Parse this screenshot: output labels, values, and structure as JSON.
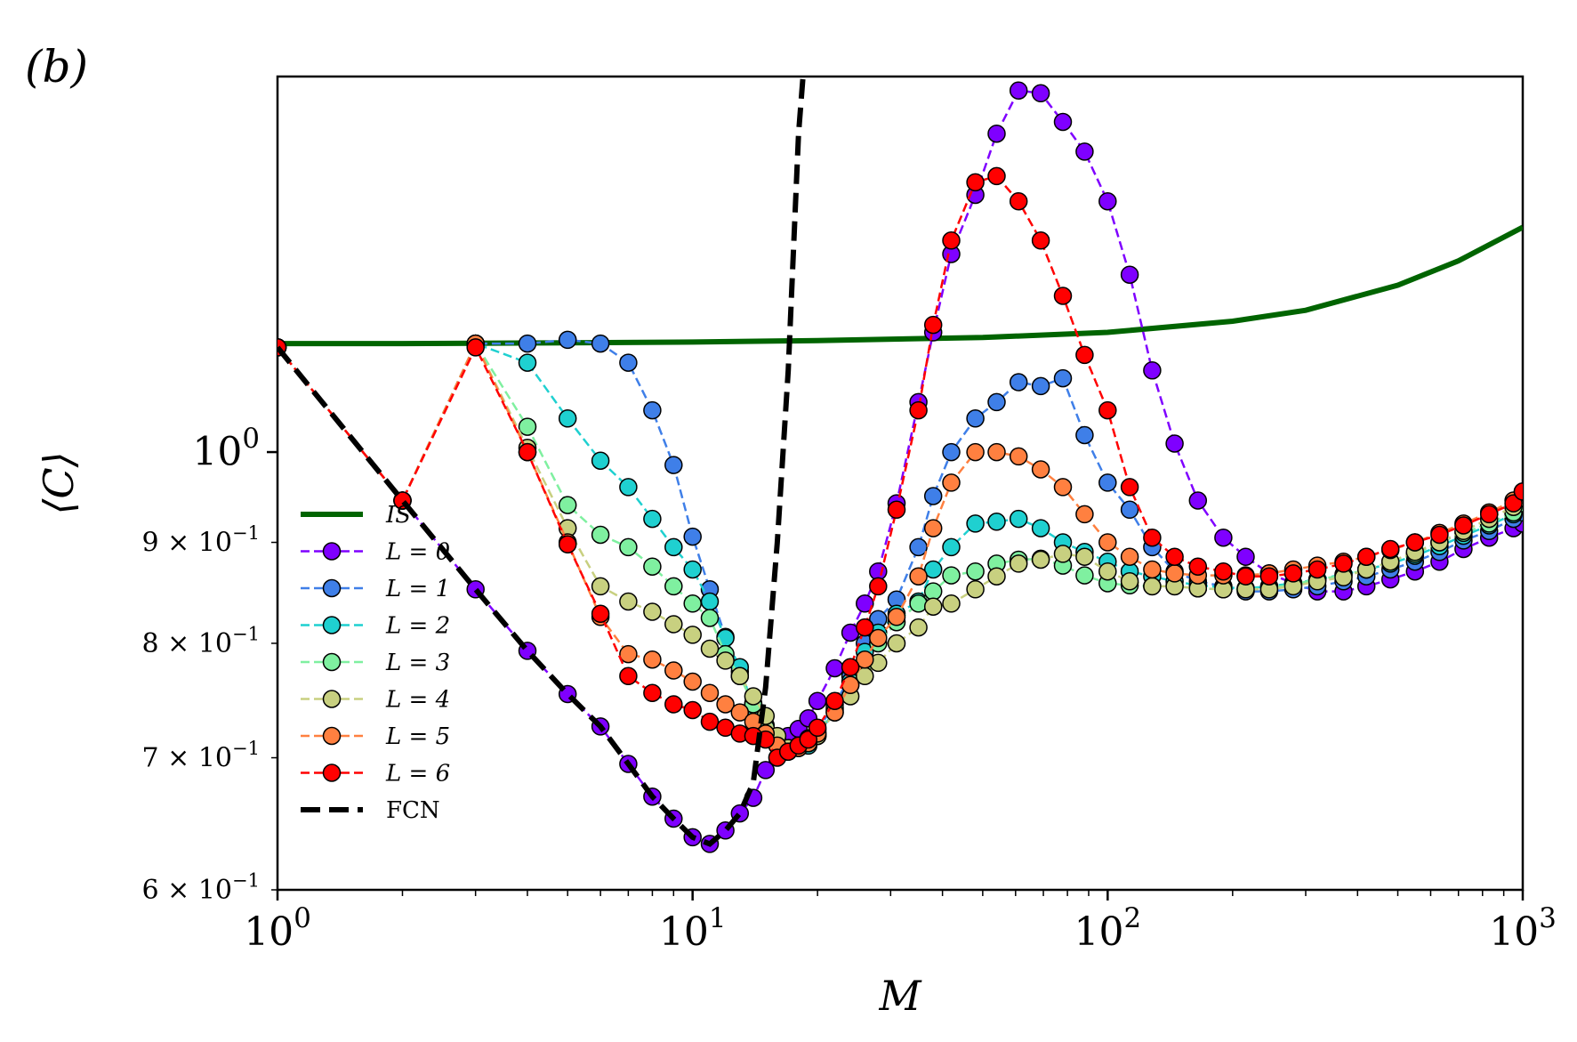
{
  "panel_label": "(b)",
  "chart_data": {
    "type": "line",
    "title": "",
    "xlabel": "M",
    "ylabel": "⟨C⟩",
    "xscale": "log",
    "yscale": "log",
    "xlim": [
      1,
      1000
    ],
    "ylim": [
      0.6,
      1.55
    ],
    "x_ticks": [
      1,
      10,
      100,
      1000
    ],
    "x_tick_labels": [
      "10^0",
      "10^1",
      "10^2",
      "10^3"
    ],
    "y_ticks": [
      0.6,
      0.7,
      0.8,
      0.9,
      1.0
    ],
    "y_tick_labels": [
      "6 × 10^−1",
      "7 × 10^−1",
      "8 × 10^−1",
      "9 × 10^−1",
      "10^0"
    ],
    "legend_position": "lower-left",
    "grid": false,
    "series": [
      {
        "name": "IS",
        "color": "#006400",
        "style": "solid-thick",
        "markers": false,
        "x": [
          1,
          2,
          5,
          10,
          20,
          50,
          100,
          200,
          300,
          500,
          700,
          1000
        ],
        "y": [
          1.135,
          1.135,
          1.136,
          1.137,
          1.139,
          1.143,
          1.15,
          1.165,
          1.18,
          1.215,
          1.25,
          1.3
        ]
      },
      {
        "name": "L = 0",
        "color": "#7f00ff",
        "style": "dashed",
        "markers": true,
        "x": [
          1,
          2,
          3,
          4,
          5,
          6,
          7,
          8,
          9,
          10,
          11,
          12,
          13,
          14,
          15,
          16,
          17,
          18,
          19,
          20,
          22,
          24,
          26,
          28,
          31,
          35,
          38,
          42,
          48,
          54,
          61,
          69,
          78,
          88,
          100,
          113,
          128,
          145,
          165,
          190,
          215,
          245,
          280,
          320,
          370,
          420,
          480,
          550,
          630,
          720,
          830,
          950,
          1000
        ],
        "y": [
          1.13,
          0.945,
          0.852,
          0.793,
          0.754,
          0.726,
          0.695,
          0.669,
          0.652,
          0.638,
          0.633,
          0.643,
          0.656,
          0.668,
          0.69,
          0.711,
          0.718,
          0.724,
          0.733,
          0.748,
          0.777,
          0.81,
          0.838,
          0.87,
          0.942,
          1.06,
          1.15,
          1.26,
          1.35,
          1.45,
          1.525,
          1.52,
          1.47,
          1.42,
          1.34,
          1.23,
          1.1,
          1.01,
          0.945,
          0.905,
          0.885,
          0.868,
          0.858,
          0.85,
          0.85,
          0.855,
          0.862,
          0.87,
          0.88,
          0.893,
          0.905,
          0.915,
          0.92
        ]
      },
      {
        "name": "L = 1",
        "color": "#3f7fe8",
        "style": "dashed",
        "markers": true,
        "x": [
          1,
          2,
          3,
          4,
          5,
          6,
          7,
          8,
          9,
          10,
          11,
          12,
          13,
          14,
          15,
          16,
          17,
          18,
          19,
          20,
          22,
          24,
          26,
          28,
          31,
          35,
          38,
          42,
          48,
          54,
          61,
          69,
          78,
          88,
          100,
          113,
          128,
          145,
          165,
          190,
          215,
          245,
          280,
          320,
          370,
          420,
          480,
          550,
          630,
          720,
          830,
          950,
          1000
        ],
        "y": [
          1.13,
          0.945,
          1.135,
          1.135,
          1.14,
          1.135,
          1.11,
          1.05,
          0.985,
          0.906,
          0.852,
          0.806,
          0.774,
          0.746,
          0.727,
          0.714,
          0.706,
          0.71,
          0.716,
          0.723,
          0.745,
          0.77,
          0.8,
          0.823,
          0.842,
          0.895,
          0.95,
          1.0,
          1.04,
          1.06,
          1.085,
          1.08,
          1.09,
          1.02,
          0.965,
          0.935,
          0.895,
          0.87,
          0.86,
          0.855,
          0.85,
          0.85,
          0.852,
          0.855,
          0.86,
          0.865,
          0.872,
          0.88,
          0.89,
          0.902,
          0.912,
          0.925,
          0.932
        ]
      },
      {
        "name": "L = 2",
        "color": "#1fd0d0",
        "style": "dashed",
        "markers": true,
        "x": [
          1,
          2,
          3,
          4,
          5,
          6,
          7,
          8,
          9,
          10,
          11,
          12,
          13,
          14,
          15,
          16,
          17,
          18,
          19,
          20,
          22,
          24,
          26,
          28,
          31,
          35,
          38,
          42,
          48,
          54,
          61,
          69,
          78,
          88,
          100,
          113,
          128,
          145,
          165,
          190,
          215,
          245,
          280,
          320,
          370,
          420,
          480,
          550,
          630,
          720,
          830,
          950,
          1000
        ],
        "y": [
          1.13,
          0.945,
          1.135,
          1.11,
          1.04,
          0.99,
          0.96,
          0.925,
          0.895,
          0.872,
          0.84,
          0.805,
          0.778,
          0.742,
          0.72,
          0.71,
          0.705,
          0.708,
          0.71,
          0.718,
          0.74,
          0.765,
          0.792,
          0.81,
          0.828,
          0.84,
          0.872,
          0.895,
          0.92,
          0.922,
          0.925,
          0.915,
          0.9,
          0.89,
          0.88,
          0.87,
          0.865,
          0.86,
          0.856,
          0.854,
          0.853,
          0.855,
          0.858,
          0.862,
          0.867,
          0.872,
          0.878,
          0.886,
          0.896,
          0.907,
          0.918,
          0.93,
          0.94
        ]
      },
      {
        "name": "L = 3",
        "color": "#7ff0a0",
        "style": "dashed",
        "markers": true,
        "x": [
          1,
          2,
          3,
          4,
          5,
          6,
          7,
          8,
          9,
          10,
          11,
          12,
          13,
          14,
          15,
          16,
          17,
          18,
          19,
          20,
          22,
          24,
          26,
          28,
          31,
          35,
          38,
          42,
          48,
          54,
          61,
          69,
          78,
          88,
          100,
          113,
          128,
          145,
          165,
          190,
          215,
          245,
          280,
          320,
          370,
          420,
          480,
          550,
          630,
          720,
          830,
          950,
          1000
        ],
        "y": [
          1.13,
          0.945,
          1.135,
          1.03,
          0.94,
          0.908,
          0.895,
          0.875,
          0.855,
          0.838,
          0.824,
          0.79,
          0.77,
          0.745,
          0.725,
          0.712,
          0.708,
          0.71,
          0.713,
          0.72,
          0.742,
          0.762,
          0.782,
          0.8,
          0.82,
          0.838,
          0.85,
          0.866,
          0.87,
          0.878,
          0.882,
          0.883,
          0.876,
          0.866,
          0.858,
          0.856,
          0.855,
          0.855,
          0.853,
          0.852,
          0.852,
          0.853,
          0.857,
          0.862,
          0.866,
          0.872,
          0.88,
          0.888,
          0.9,
          0.91,
          0.92,
          0.932,
          0.942
        ]
      },
      {
        "name": "L = 4",
        "color": "#c8d080",
        "style": "dashed",
        "markers": true,
        "x": [
          1,
          2,
          3,
          4,
          5,
          6,
          7,
          8,
          9,
          10,
          11,
          12,
          13,
          14,
          15,
          16,
          17,
          18,
          19,
          20,
          22,
          24,
          26,
          28,
          31,
          35,
          38,
          42,
          48,
          54,
          61,
          69,
          78,
          88,
          100,
          113,
          128,
          145,
          165,
          190,
          215,
          245,
          280,
          320,
          370,
          420,
          480,
          550,
          630,
          720,
          830,
          950,
          1000
        ],
        "y": [
          1.13,
          0.945,
          1.135,
          1.005,
          0.915,
          0.855,
          0.84,
          0.83,
          0.818,
          0.808,
          0.795,
          0.784,
          0.77,
          0.752,
          0.735,
          0.718,
          0.708,
          0.71,
          0.712,
          0.718,
          0.738,
          0.752,
          0.77,
          0.782,
          0.8,
          0.815,
          0.835,
          0.838,
          0.852,
          0.865,
          0.878,
          0.882,
          0.888,
          0.885,
          0.87,
          0.86,
          0.855,
          0.855,
          0.853,
          0.852,
          0.852,
          0.852,
          0.855,
          0.86,
          0.864,
          0.872,
          0.88,
          0.89,
          0.9,
          0.912,
          0.925,
          0.938,
          0.948
        ]
      },
      {
        "name": "L = 5",
        "color": "#ff8040",
        "style": "dashed",
        "markers": true,
        "x": [
          1,
          2,
          3,
          4,
          5,
          6,
          7,
          8,
          9,
          10,
          11,
          12,
          13,
          14,
          15,
          16,
          17,
          18,
          19,
          20,
          22,
          24,
          26,
          28,
          31,
          35,
          38,
          42,
          48,
          54,
          61,
          69,
          78,
          88,
          100,
          113,
          128,
          145,
          165,
          190,
          215,
          245,
          280,
          320,
          370,
          420,
          480,
          550,
          630,
          720,
          830,
          950,
          1000
        ],
        "y": [
          1.13,
          0.945,
          1.135,
          1.0,
          0.9,
          0.825,
          0.79,
          0.785,
          0.775,
          0.765,
          0.755,
          0.745,
          0.738,
          0.73,
          0.72,
          0.71,
          0.705,
          0.708,
          0.712,
          0.72,
          0.738,
          0.762,
          0.785,
          0.805,
          0.825,
          0.865,
          0.915,
          0.965,
          1.0,
          1.0,
          0.995,
          0.98,
          0.96,
          0.93,
          0.9,
          0.885,
          0.872,
          0.868,
          0.866,
          0.866,
          0.866,
          0.868,
          0.872,
          0.876,
          0.88,
          0.885,
          0.892,
          0.9,
          0.91,
          0.92,
          0.932,
          0.945,
          0.955
        ]
      },
      {
        "name": "L = 6",
        "color": "#ff0000",
        "style": "dashed",
        "markers": true,
        "x": [
          1,
          2,
          3,
          4,
          5,
          6,
          7,
          8,
          9,
          10,
          11,
          12,
          13,
          14,
          15,
          16,
          17,
          18,
          19,
          20,
          22,
          24,
          26,
          28,
          31,
          35,
          38,
          42,
          48,
          54,
          61,
          69,
          78,
          88,
          100,
          113,
          128,
          145,
          165,
          190,
          215,
          245,
          280,
          320,
          370,
          420,
          480,
          550,
          630,
          720,
          830,
          950,
          1000
        ],
        "y": [
          1.13,
          0.945,
          1.13,
          1.0,
          0.898,
          0.828,
          0.77,
          0.755,
          0.745,
          0.74,
          0.73,
          0.725,
          0.72,
          0.718,
          0.715,
          0.7,
          0.705,
          0.71,
          0.715,
          0.725,
          0.748,
          0.778,
          0.815,
          0.855,
          0.935,
          1.05,
          1.16,
          1.28,
          1.37,
          1.38,
          1.34,
          1.28,
          1.2,
          1.12,
          1.05,
          0.96,
          0.905,
          0.885,
          0.875,
          0.87,
          0.865,
          0.865,
          0.868,
          0.872,
          0.878,
          0.885,
          0.893,
          0.9,
          0.908,
          0.918,
          0.93,
          0.942,
          0.955
        ]
      },
      {
        "name": "FCN",
        "color": "#000000",
        "style": "dashed-thick",
        "markers": false,
        "x": [
          1,
          2,
          3,
          4,
          5,
          6,
          7,
          8,
          9,
          10,
          11,
          12,
          13,
          14,
          15,
          16,
          17,
          18,
          18.5
        ],
        "y": [
          1.13,
          0.945,
          0.852,
          0.793,
          0.754,
          0.726,
          0.695,
          0.669,
          0.652,
          0.638,
          0.633,
          0.643,
          0.656,
          0.68,
          0.76,
          0.9,
          1.1,
          1.45,
          1.56
        ]
      }
    ]
  }
}
